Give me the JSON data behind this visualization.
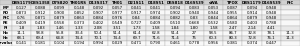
{
  "col_headers": [
    "",
    "D8S1179",
    "D3S1358",
    "D7S820",
    "TH01RS",
    "D13S317",
    "TH01",
    "D21S11",
    "D18S51",
    "D5S818",
    "D16S539",
    "vWA",
    "TPOX",
    "D8S1179",
    "D16S539",
    "PIC"
  ],
  "rows": [
    [
      "MP",
      "0.127",
      "0.088",
      "0.099",
      "0.148",
      "0.092",
      "0.057",
      "0.041",
      "0.041",
      "0.094",
      "0.083",
      "0.053",
      "0.087",
      "0.094",
      "0.948",
      ""
    ],
    [
      "PD",
      "0.873",
      "0.912",
      "0.900",
      "0.852",
      "0.907",
      "0.977",
      "0.917",
      "0.974",
      "0.902",
      "0.940",
      "0.944",
      "0.955",
      "0.914",
      "0.948",
      ""
    ],
    [
      "PIC",
      "0.76",
      "0.871",
      "0.879",
      "0.863",
      "0.884",
      "0.976",
      "0.84",
      "0.884",
      "0.882",
      "0.83",
      "0.844",
      "0.864",
      "0.879",
      "0.948",
      ""
    ],
    [
      "PE",
      "0.409",
      "0.419",
      "0.558",
      "0.373",
      "0.402",
      "0.549",
      "0.727",
      "0.409",
      "0.510",
      "0.668",
      "0.532",
      "0.580",
      "0.403",
      "0.788",
      ""
    ],
    [
      "PI",
      "1.8",
      "1.83",
      "1.46",
      "1.33",
      "2.08",
      "3.51",
      "1.73",
      "1.58",
      "1.84",
      "1.80",
      "1.58",
      "2.47",
      "2.14",
      "4.41",
      ""
    ],
    [
      "Ho",
      "11.1",
      "58.8",
      "55.8",
      "33.4",
      "50.4",
      "51.4",
      "61.4",
      "62.8",
      "51.4",
      "27",
      "58.5",
      "86.7",
      "32.8",
      "78.1",
      "11.3"
    ],
    [
      "He",
      "68.1",
      "69.4",
      "64.8",
      "74.4",
      "70.1",
      "74.4",
      "69.7",
      "71.6",
      "71.4",
      "75",
      "60.3",
      "80.3",
      "72.8",
      "76.1",
      "11.3"
    ],
    [
      "p-value",
      "0.141",
      "0.181",
      "0.104",
      "0.194",
      "0.994",
      "0.029",
      "0.471",
      "0.790",
      "0.461",
      "0.778",
      "0.956",
      "0.381",
      "0.374",
      "0.447",
      ""
    ]
  ],
  "bg_header": "#d0d0d0",
  "bg_row_odd": "#e8e8e8",
  "bg_row_even": "#f8f8f8",
  "font_size": 2.8,
  "edge_color": "#999999",
  "edge_lw": 0.2,
  "fig_w": 3.0,
  "fig_h": 0.46,
  "dpi": 100
}
